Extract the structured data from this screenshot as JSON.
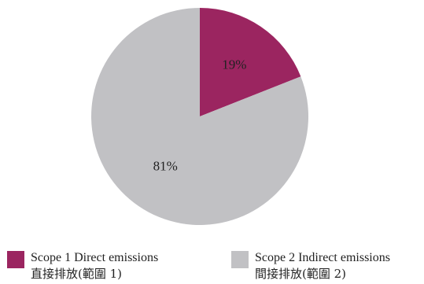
{
  "chart_data": {
    "type": "pie",
    "slices": [
      {
        "label_en": "Scope 1 Direct emissions",
        "label_zh": "直接排放(範圍 1)",
        "value": 19,
        "display": "19%",
        "color": "#9b2560"
      },
      {
        "label_en": "Scope 2 Indirect emissions",
        "label_zh": "間接排放(範圍 2)",
        "value": 81,
        "display": "81%",
        "color": "#c1c1c4"
      }
    ],
    "start_angle_deg": 0,
    "direction": "clockwise",
    "legend_position": "bottom"
  }
}
